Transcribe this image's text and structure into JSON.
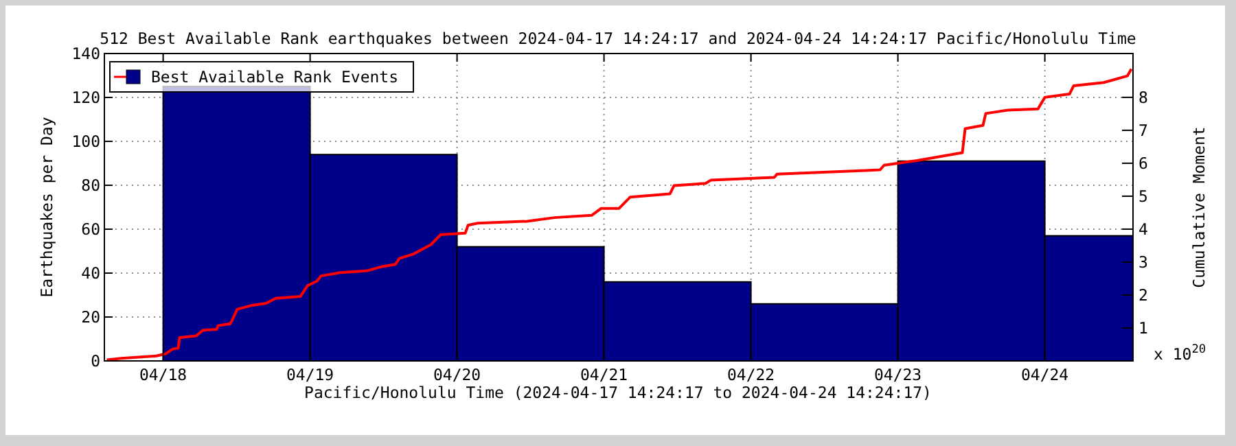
{
  "chart_data": {
    "type": "histogram",
    "title": "512 Best Available Rank earthquakes between 2024-04-17 14:24:17 and 2024-04-24 14:24:17 Pacific/Honolulu Time",
    "xlabel": "Pacific/Honolulu Time (2024-04-17 14:24:17 to 2024-04-24 14:24:17)",
    "ylabel": "Earthquakes per Day",
    "y2label": "Cumulative Moment",
    "annotations": [
      "x 10$^{20}$"
    ],
    "xlim": [
      "2024-04-17T14:24",
      "2024-04-24T14:24"
    ],
    "xticks": [
      {
        "value": "2024-04-18T00:00",
        "label": "04/18"
      },
      {
        "value": "2024-04-19T00:00",
        "label": "04/19"
      },
      {
        "value": "2024-04-20T00:00",
        "label": "04/20"
      },
      {
        "value": "2024-04-21T00:00",
        "label": "04/21"
      },
      {
        "value": "2024-04-22T00:00",
        "label": "04/22"
      },
      {
        "value": "2024-04-23T00:00",
        "label": "04/23"
      },
      {
        "value": "2024-04-24T00:00",
        "label": "04/24"
      }
    ],
    "ylim": [
      0,
      140
    ],
    "yticks": [
      0,
      20,
      40,
      60,
      80,
      100,
      120,
      140
    ],
    "y2lim": [
      0,
      9.33
    ],
    "y2ticks": [
      1,
      2,
      3,
      4,
      5,
      6,
      7,
      8
    ],
    "grid": true,
    "legend": "top left",
    "series": [
      {
        "name": "Best Available Rank Events",
        "color": "#000088",
        "bins": [
          "2024-04-18T00:00",
          "2024-04-19T00:00",
          "2024-04-20T00:00",
          "2024-04-21T00:00",
          "2024-04-22T00:00",
          "2024-04-23T00:00",
          "2024-04-24T00:00",
          "2024-04-24T14:24"
        ],
        "values": [
          125,
          94,
          52,
          36,
          26,
          91,
          57
        ]
      },
      {
        "type": "line",
        "axis": "y2",
        "color": "#ff0000",
        "x": [
          "2024-04-17T14:48",
          "2024-04-17T17:06",
          "2024-04-17T22:54",
          "2024-04-18T00:27",
          "2024-04-18T01:34",
          "2024-04-18T02:28",
          "2024-04-18T02:41",
          "2024-04-18T05:23",
          "2024-04-18T06:30",
          "2024-04-18T08:45",
          "2024-04-18T08:58",
          "2024-04-18T10:59",
          "2024-04-18T12:07",
          "2024-04-18T14:21",
          "2024-04-18T16:49",
          "2024-04-18T18:23",
          "2024-04-18T22:26",
          "2024-04-18T23:33",
          "2024-04-19T01:07",
          "2024-04-19T01:48",
          "2024-04-19T04:56",
          "2024-04-19T09:25",
          "2024-04-19T11:40",
          "2024-04-19T13:55",
          "2024-04-19T14:35",
          "2024-04-19T16:49",
          "2024-04-19T19:44",
          "2024-04-19T21:18",
          "2024-04-20T01:21",
          "2024-04-20T01:48",
          "2024-04-20T03:22",
          "2024-04-20T11:26",
          "2024-04-20T15:55",
          "2024-04-20T21:59",
          "2024-04-20T23:33",
          "2024-04-21T02:28",
          "2024-04-21T04:16",
          "2024-04-21T10:46",
          "2024-04-21T11:26",
          "2024-04-21T16:36",
          "2024-04-21T17:29",
          "2024-04-22T03:49",
          "2024-04-22T04:16",
          "2024-04-22T21:05",
          "2024-04-22T21:45",
          "2024-04-23T03:08",
          "2024-04-23T10:32",
          "2024-04-23T10:59",
          "2024-04-23T13:54",
          "2024-04-23T14:21",
          "2024-04-23T17:57",
          "2024-04-23T22:53",
          "2024-04-24T00:00",
          "2024-04-24T04:02",
          "2024-04-24T04:42",
          "2024-04-24T09:38",
          "2024-04-24T13:29",
          "2024-04-24T14:08"
        ],
        "values": [
          0.03,
          0.08,
          0.15,
          0.22,
          0.36,
          0.39,
          0.71,
          0.76,
          0.93,
          0.96,
          1.07,
          1.13,
          1.57,
          1.68,
          1.75,
          1.9,
          1.96,
          2.28,
          2.42,
          2.58,
          2.68,
          2.74,
          2.86,
          2.93,
          3.11,
          3.24,
          3.53,
          3.83,
          3.88,
          4.12,
          4.18,
          4.24,
          4.35,
          4.42,
          4.63,
          4.63,
          4.97,
          5.07,
          5.32,
          5.39,
          5.49,
          5.57,
          5.67,
          5.8,
          5.94,
          6.08,
          6.32,
          7.05,
          7.15,
          7.51,
          7.61,
          7.65,
          8.0,
          8.1,
          8.35,
          8.45,
          8.65,
          8.86
        ]
      }
    ]
  }
}
